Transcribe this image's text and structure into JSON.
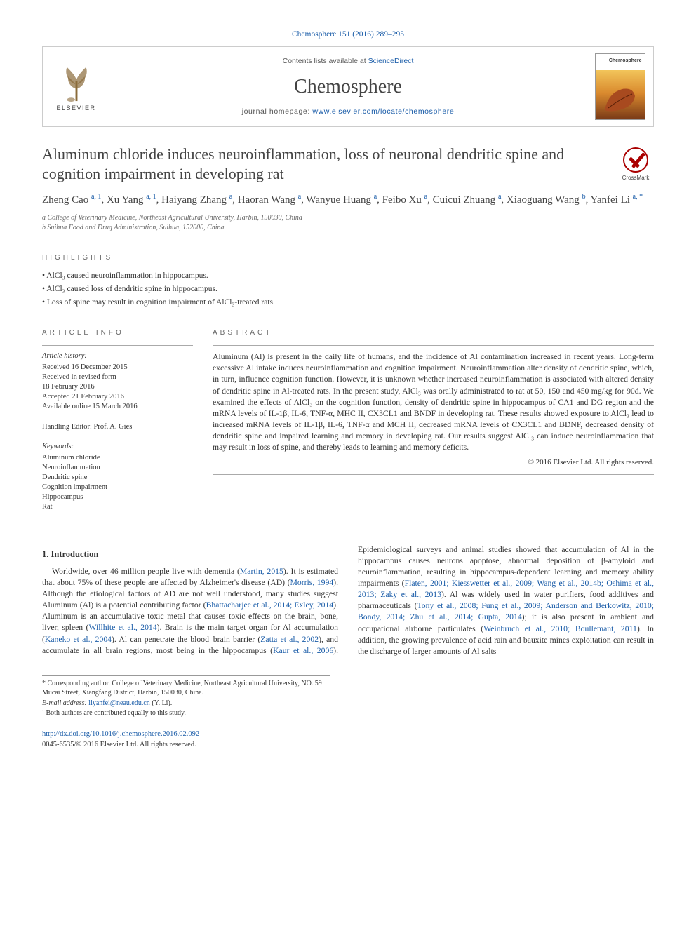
{
  "top_reference": "Chemosphere 151 (2016) 289–295",
  "header": {
    "contents_prefix": "Contents lists available at ",
    "contents_link": "ScienceDirect",
    "journal": "Chemosphere",
    "homepage_prefix": "journal homepage: ",
    "homepage_url": "www.elsevier.com/locate/chemosphere",
    "publisher_text": "ELSEVIER",
    "cover_label": "Chemosphere"
  },
  "article": {
    "title": "Aluminum chloride induces neuroinflammation, loss of neuronal dendritic spine and cognition impairment in developing rat",
    "crossmark": "CrossMark"
  },
  "authors_html": "Zheng Cao <sup>a, 1</sup>, Xu Yang <sup>a, 1</sup>, Haiyang Zhang <sup>a</sup>, Haoran Wang <sup>a</sup>, Wanyue Huang <sup>a</sup>, Feibo Xu <sup>a</sup>, Cuicui Zhuang <sup>a</sup>, Xiaoguang Wang <sup>b</sup>, Yanfei Li <sup>a, *</sup>",
  "affiliations": {
    "a": "a College of Veterinary Medicine, Northeast Agricultural University, Harbin, 150030, China",
    "b": "b Suihua Food and Drug Administration, Suihua, 152000, China"
  },
  "labels": {
    "highlights": "HIGHLIGHTS",
    "article_info": "ARTICLE INFO",
    "abstract": "ABSTRACT",
    "introduction": "1. Introduction"
  },
  "highlights": [
    "AlCl₃ caused neuroinflammation in hippocampus.",
    "AlCl₃ caused loss of dendritic spine in hippocampus.",
    "Loss of spine may result in cognition impairment of AlCl₃-treated rats."
  ],
  "article_info": {
    "history_head": "Article history:",
    "history": [
      "Received 16 December 2015",
      "Received in revised form",
      "18 February 2016",
      "Accepted 21 February 2016",
      "Available online 15 March 2016"
    ],
    "editor_label": "Handling Editor: Prof. A. Gies",
    "keywords_head": "Keywords:",
    "keywords": [
      "Aluminum chloride",
      "Neuroinflammation",
      "Dendritic spine",
      "Cognition impairment",
      "Hippocampus",
      "Rat"
    ]
  },
  "abstract": "Aluminum (Al) is present in the daily life of humans, and the incidence of Al contamination increased in recent years. Long-term excessive Al intake induces neuroinflammation and cognition impairment. Neuroinflammation alter density of dendritic spine, which, in turn, influence cognition function. However, it is unknown whether increased neuroinflammation is associated with altered density of dendritic spine in Al-treated rats. In the present study, AlCl₃ was orally administrated to rat at 50, 150 and 450 mg/kg for 90d. We examined the effects of AlCl₃ on the cognition function, density of dendritic spine in hippocampus of CA1 and DG region and the mRNA levels of IL-1β, IL-6, TNF-α, MHC II, CX3CL1 and BNDF in developing rat. These results showed exposure to AlCl₃ lead to increased mRNA levels of IL-1β, IL-6, TNF-α and MCH II, decreased mRNA levels of CX3CL1 and BDNF, decreased density of dendritic spine and impaired learning and memory in developing rat. Our results suggest AlCl₃ can induce neuroinflammation that may result in loss of spine, and thereby leads to learning and memory deficits.",
  "copyright": "© 2016 Elsevier Ltd. All rights reserved.",
  "body": {
    "p1_a": "Worldwide, over 46 million people live with dementia (",
    "p1_c1": "Martin, 2015",
    "p1_b": "). It is estimated that about 75% of these people are affected by Alzheimer's disease (AD) (",
    "p1_c2": "Morris, 1994",
    "p1_c": "). Although the etiological factors of AD are not well understood, many studies suggest Aluminum (Al) is a potential contributing factor (",
    "p1_c3": "Bhattacharjee et al., 2014; Exley, 2014",
    "p1_d": "). Aluminum is an accumulative toxic metal that causes toxic effects on the brain, bone, liver, spleen (",
    "p1_c4": "Willhite et al., 2014",
    "p1_e": "). Brain is the main target organ for Al",
    "p2_a": "accumulation (",
    "p2_c1": "Kaneko et al., 2004",
    "p2_b": "). Al can penetrate the blood–brain barrier (",
    "p2_c2": "Zatta et al., 2002",
    "p2_c": "), and accumulate in all brain regions, most being in the hippocampus (",
    "p2_c3": "Kaur et al., 2006",
    "p2_d": "). Epidemiological surveys and animal studies showed that accumulation of Al in the hippocampus causes neurons apoptose, abnormal deposition of β-amyloid and neuroinflammation, resulting in hippocampus-dependent learning and memory ability impairments (",
    "p2_c4": "Flaten, 2001; Kiesswetter et al., 2009; Wang et al., 2014b; Oshima et al., 2013; Zaky et al., 2013",
    "p2_e": "). Al was widely used in water purifiers, food additives and pharmaceuticals (",
    "p2_c5": "Tony et al., 2008; Fung et al., 2009; Anderson and Berkowitz, 2010; Bondy, 2014; Zhu et al., 2014; Gupta, 2014",
    "p2_f": "); it is also present in ambient and occupational airborne particulates (",
    "p2_c6": "Weinbruch et al., 2010; Boullemant, 2011",
    "p2_g": "). In addition, the growing prevalence of acid rain and bauxite mines exploitation can result in the discharge of larger amounts of Al salts"
  },
  "footnotes": {
    "corr": "* Corresponding author. College of Veterinary Medicine, Northeast Agricultural University, NO. 59 Mucai Street, Xiangfang District, Harbin, 150030, China.",
    "email_label": "E-mail address: ",
    "email": "liyanfei@neau.edu.cn",
    "email_suffix": " (Y. Li).",
    "equal": "¹ Both authors are contributed equally to this study."
  },
  "bottom": {
    "doi": "http://dx.doi.org/10.1016/j.chemosphere.2016.02.092",
    "issn_line": "0045-6535/© 2016 Elsevier Ltd. All rights reserved."
  },
  "colors": {
    "link": "#1a5ca8",
    "text": "#333333",
    "muted": "#666666",
    "rule": "#999999"
  }
}
